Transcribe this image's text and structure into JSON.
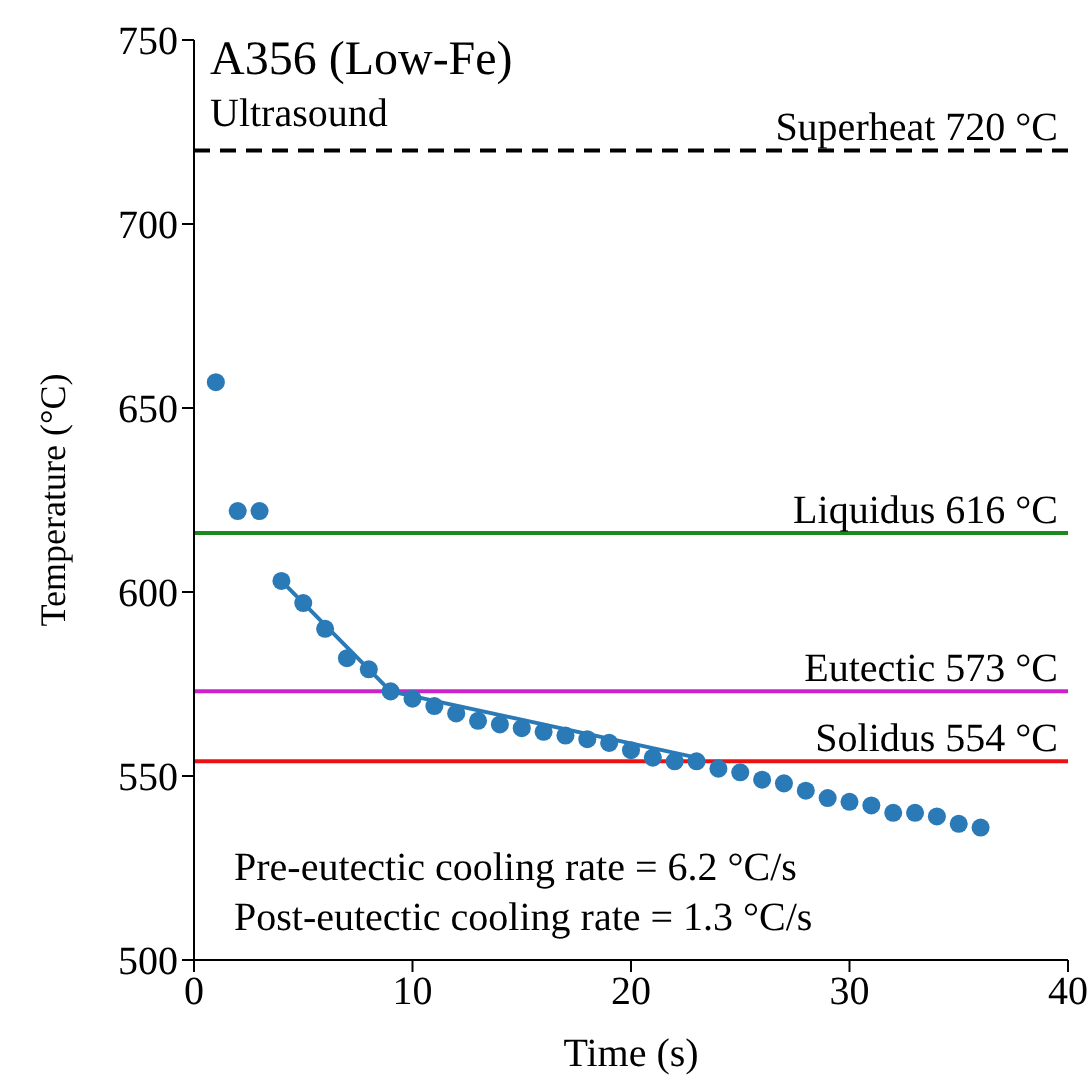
{
  "chart_data": {
    "type": "scatter",
    "title": "A356 (Low-Fe)",
    "xlabel": "Time (s)",
    "ylabel": "Temperature (°C)",
    "xlim": [
      0,
      40
    ],
    "xticks": [
      0,
      10,
      20,
      30,
      40
    ],
    "ylim": [
      500,
      750
    ],
    "yticks": [
      500,
      550,
      600,
      650,
      700,
      750
    ],
    "marker": "circle",
    "grid": false,
    "legend": false,
    "series": [
      {
        "color": "#2a7ab8",
        "x": [
          1,
          2,
          3,
          4,
          5,
          6,
          7,
          8,
          9,
          10,
          11,
          12,
          13,
          14,
          15,
          16,
          17,
          18,
          19,
          20,
          21,
          22,
          23,
          24,
          25,
          26,
          27,
          28,
          29,
          30,
          31,
          32,
          33,
          34,
          35,
          36
        ],
        "values": [
          657,
          622,
          622,
          603,
          597,
          590,
          582,
          579,
          573,
          571,
          569,
          567,
          565,
          564,
          563,
          562,
          561,
          560,
          559,
          557,
          555,
          554,
          554,
          552,
          551,
          549,
          548,
          546,
          544,
          543,
          542,
          540,
          540,
          539,
          537,
          536
        ]
      },
      {
        "type": "line",
        "color": "#2a7ab8",
        "marker": "none",
        "x": [
          4,
          9
        ],
        "values": [
          603,
          573
        ]
      },
      {
        "type": "line",
        "color": "#2a7ab8",
        "marker": "none",
        "x": [
          9,
          23
        ],
        "values": [
          573,
          555
        ]
      }
    ],
    "ref_lines": [
      {
        "axis": "y",
        "value": 720,
        "label": "Superheat 720 °C",
        "color": "#000000",
        "line_style": "dashed"
      },
      {
        "axis": "y",
        "value": 616,
        "label": "Liquidus 616 °C",
        "color": "#1a8a1a",
        "line_style": "solid"
      },
      {
        "axis": "y",
        "value": 573,
        "label": "Eutectic 573 °C",
        "color": "#cc22cc",
        "line_style": "solid"
      },
      {
        "axis": "y",
        "value": 554,
        "label": "Solidus 554 °C",
        "color": "#ee1111",
        "line_style": "solid"
      }
    ],
    "annotations": [
      "Ultrasound",
      "Pre-eutectic cooling rate = 6.2 °C/s",
      "Post-eutectic cooling rate = 1.3 °C/s"
    ]
  }
}
